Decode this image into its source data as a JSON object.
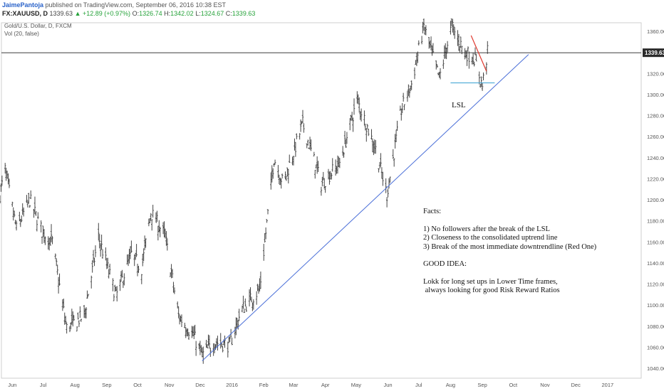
{
  "header": {
    "author": "JaimePantoja",
    "published": "published on TradingView.com, September 06, 2016 10:38 EST",
    "symbol": "FX:XAUUSD, D",
    "last": "1339.63",
    "change": "▲ +12.89 (+0.97%)",
    "o_label": "O:",
    "o": "1326.74",
    "h_label": "H:",
    "h": "1342.02",
    "l_label": "L:",
    "l": "1324.67",
    "c_label": "C:",
    "c": "1339.63"
  },
  "legend": {
    "title": "Gold/U.S. Dollar, D, FXCM",
    "volume": "Vol (20, false)"
  },
  "annotations": {
    "lsl": "LSL",
    "facts": [
      "Facts:",
      "",
      "1) No followers after the break of the LSL",
      "2) Closeness to the consolidated uptrend line",
      "3) Break of the most immediate downtrendline (Red One)",
      "",
      "GOOD IDEA:",
      "",
      "Lokk for long set ups in Lower Time frames,",
      " always looking for good Risk Reward Ratios"
    ]
  },
  "colors": {
    "bars": "#444444",
    "trendline": "#4a6fd8",
    "downtrend": "#e0352b",
    "lsl_line": "#49a9d6",
    "price_line": "#222222",
    "price_tag": "#2a2a2a"
  },
  "chart_data": {
    "type": "ohlc",
    "title": "Gold/U.S. Dollar, D, FXCM",
    "last_price": "1339.63",
    "ylim": [
      1030,
      1390
    ],
    "y_ticks": [
      "1360.00",
      "1340.00",
      "1320.00",
      "1300.00",
      "1280.00",
      "1260.00",
      "1240.00",
      "1220.00",
      "1200.00",
      "1180.00",
      "1160.00",
      "1140.00",
      "1120.00",
      "1100.00",
      "1080.00",
      "1060.00",
      "1040.00"
    ],
    "x_ticks": [
      "Jun",
      "Jul",
      "Aug",
      "Sep",
      "Oct",
      "Nov",
      "Dec",
      "2016",
      "Feb",
      "Mar",
      "Apr",
      "May",
      "Jun",
      "Jul",
      "Aug",
      "Sep",
      "Oct",
      "Nov",
      "Dec",
      "2017"
    ],
    "x_range": [
      "2015-05-20",
      "2017-01-15"
    ],
    "tick_dates": [
      "2015-06-01",
      "2015-07-01",
      "2015-08-01",
      "2015-09-01",
      "2015-10-01",
      "2015-11-01",
      "2015-12-01",
      "2016-01-01",
      "2016-02-01",
      "2016-03-01",
      "2016-04-01",
      "2016-05-01",
      "2016-06-01",
      "2016-07-01",
      "2016-08-01",
      "2016-09-01",
      "2016-10-01",
      "2016-11-01",
      "2016-12-01",
      "2017-01-01"
    ],
    "price_path": [
      [
        "2015-05-20",
        1205
      ],
      [
        "2015-05-25",
        1228
      ],
      [
        "2015-06-05",
        1172
      ],
      [
        "2015-06-18",
        1200
      ],
      [
        "2015-06-30",
        1170
      ],
      [
        "2015-07-10",
        1160
      ],
      [
        "2015-07-20",
        1100
      ],
      [
        "2015-07-24",
        1078
      ],
      [
        "2015-08-10",
        1090
      ],
      [
        "2015-08-24",
        1165
      ],
      [
        "2015-09-10",
        1108
      ],
      [
        "2015-09-25",
        1148
      ],
      [
        "2015-10-05",
        1135
      ],
      [
        "2015-10-14",
        1188
      ],
      [
        "2015-10-28",
        1165
      ],
      [
        "2015-11-10",
        1090
      ],
      [
        "2015-11-25",
        1070
      ],
      [
        "2015-12-03",
        1052
      ],
      [
        "2015-12-15",
        1065
      ],
      [
        "2015-12-30",
        1062
      ],
      [
        "2016-01-10",
        1095
      ],
      [
        "2016-01-28",
        1115
      ],
      [
        "2016-02-11",
        1240
      ],
      [
        "2016-02-20",
        1215
      ],
      [
        "2016-03-10",
        1272
      ],
      [
        "2016-03-28",
        1215
      ],
      [
        "2016-04-15",
        1235
      ],
      [
        "2016-05-02",
        1295
      ],
      [
        "2016-05-20",
        1248
      ],
      [
        "2016-05-31",
        1205
      ],
      [
        "2016-06-14",
        1285
      ],
      [
        "2016-06-24",
        1310
      ],
      [
        "2016-07-06",
        1365
      ],
      [
        "2016-07-21",
        1315
      ],
      [
        "2016-08-02",
        1365
      ],
      [
        "2016-08-15",
        1340
      ],
      [
        "2016-08-24",
        1335
      ],
      [
        "2016-09-01",
        1308
      ],
      [
        "2016-09-06",
        1339.63
      ]
    ],
    "ascending_trendline": [
      [
        "2015-12-03",
        1047
      ],
      [
        "2016-10-16",
        1338
      ]
    ],
    "downtrend_line": [
      [
        "2016-08-21",
        1356
      ],
      [
        "2016-09-05",
        1322
      ]
    ],
    "lsl_line": [
      [
        "2016-08-01",
        1311
      ],
      [
        "2016-09-13",
        1311
      ]
    ],
    "price_level": 1339.63
  }
}
